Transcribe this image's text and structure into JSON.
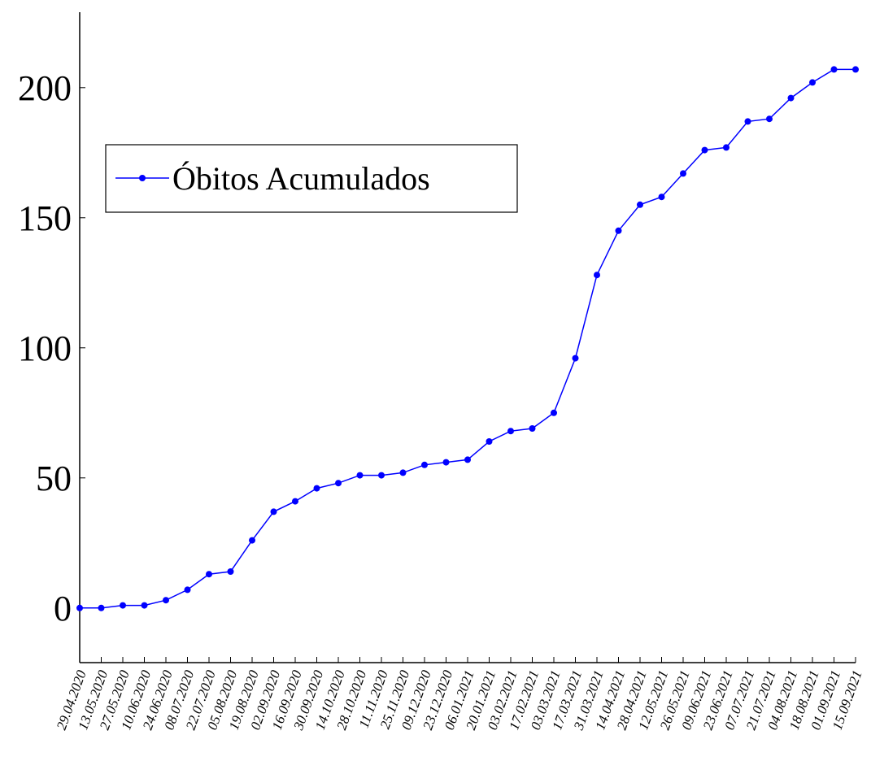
{
  "chart_data": {
    "type": "line",
    "x": [
      0,
      14,
      28,
      42,
      56,
      70,
      84,
      98,
      112,
      126,
      140,
      154,
      168,
      182,
      196,
      210,
      224,
      238,
      252,
      266,
      280,
      294,
      308,
      322,
      336,
      350,
      364,
      378,
      392,
      406,
      420,
      434,
      448,
      462,
      476,
      490,
      504
    ],
    "series": [
      {
        "name": "Óbitos Acumulados",
        "color": "#0000ff",
        "values": [
          0,
          0,
          1,
          1,
          3,
          7,
          13,
          14,
          26,
          37,
          41,
          46,
          48,
          51,
          51,
          52,
          55,
          56,
          57,
          64,
          68,
          69,
          75,
          96,
          128,
          145,
          155,
          158,
          167,
          176,
          177,
          187,
          188,
          196,
          202,
          207,
          207
        ]
      }
    ],
    "xlim": [
      0,
      504
    ],
    "xticks": [
      {
        "value": 0,
        "label": "29.04.2020"
      },
      {
        "value": 14,
        "label": "13.05.2020"
      },
      {
        "value": 28,
        "label": "27.05.2020"
      },
      {
        "value": 42,
        "label": "10.06.2020"
      },
      {
        "value": 56,
        "label": "24.06.2020"
      },
      {
        "value": 70,
        "label": "08.07.2020"
      },
      {
        "value": 84,
        "label": "22.07.2020"
      },
      {
        "value": 98,
        "label": "05.08.2020"
      },
      {
        "value": 112,
        "label": "19.08.2020"
      },
      {
        "value": 126,
        "label": "02.09.2020"
      },
      {
        "value": 140,
        "label": "16.09.2020"
      },
      {
        "value": 154,
        "label": "30.09.2020"
      },
      {
        "value": 168,
        "label": "14.10.2020"
      },
      {
        "value": 182,
        "label": "28.10.2020"
      },
      {
        "value": 196,
        "label": "11.11.2020"
      },
      {
        "value": 210,
        "label": "25.11.2020"
      },
      {
        "value": 224,
        "label": "09.12.2020"
      },
      {
        "value": 238,
        "label": "23.12.2020"
      },
      {
        "value": 252,
        "label": "06.01.2021"
      },
      {
        "value": 266,
        "label": "20.01.2021"
      },
      {
        "value": 280,
        "label": "03.02.2021"
      },
      {
        "value": 294,
        "label": "17.02.2021"
      },
      {
        "value": 308,
        "label": "03.03.2021"
      },
      {
        "value": 322,
        "label": "17.03.2021"
      },
      {
        "value": 336,
        "label": "31.03.2021"
      },
      {
        "value": 350,
        "label": "14.04.2021"
      },
      {
        "value": 364,
        "label": "28.04.2021"
      },
      {
        "value": 378,
        "label": "12.05.2021"
      },
      {
        "value": 392,
        "label": "26.05.2021"
      },
      {
        "value": 406,
        "label": "09.06.2021"
      },
      {
        "value": 420,
        "label": "23.06.2021"
      },
      {
        "value": 434,
        "label": "07.07.2021"
      },
      {
        "value": 448,
        "label": "21.07.2021"
      },
      {
        "value": 462,
        "label": "04.08.2021"
      },
      {
        "value": 476,
        "label": "18.08.2021"
      },
      {
        "value": 490,
        "label": "01.09.2021"
      },
      {
        "value": 504,
        "label": "15.09.2021"
      }
    ],
    "ylim": [
      -21,
      229
    ],
    "yticks": [
      0,
      50,
      100,
      150,
      200
    ],
    "legend": "upper left"
  }
}
